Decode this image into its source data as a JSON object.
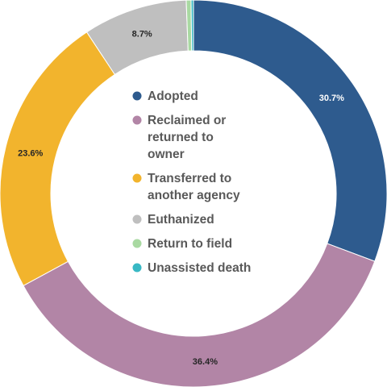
{
  "chart_data": {
    "type": "pie",
    "donut": true,
    "title": "",
    "legend_position": "center",
    "categories": [
      "Adopted",
      "Reclaimed or returned to owner",
      "Transferred to another agency",
      "Euthanized",
      "Return to field",
      "Unassisted death"
    ],
    "legend_lines": [
      [
        "Adopted"
      ],
      [
        "Reclaimed or",
        "returned to",
        "owner"
      ],
      [
        "Transferred to",
        "another agency"
      ],
      [
        "Euthanized"
      ],
      [
        "Return to field"
      ],
      [
        "Unassisted death"
      ]
    ],
    "values": [
      30.7,
      36.4,
      23.6,
      8.7,
      0.4,
      0.2
    ],
    "data_labels": [
      "30.7%",
      "36.4%",
      "23.6%",
      "8.7%",
      "",
      ""
    ],
    "colors": [
      "#2e5b8e",
      "#b285a6",
      "#f2b42d",
      "#bfbfbf",
      "#a9d9a2",
      "#38b8c4"
    ],
    "label_colors": [
      "#ffffff",
      "#262626",
      "#262626",
      "#262626",
      "#262626",
      "#262626"
    ]
  }
}
